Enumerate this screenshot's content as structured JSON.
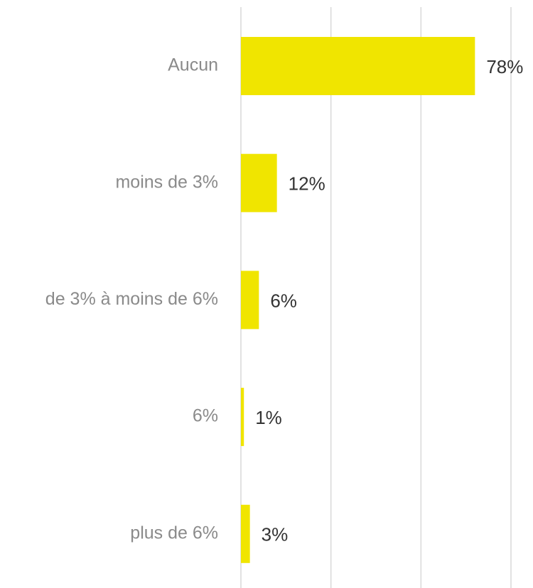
{
  "chart_data": {
    "type": "barh",
    "categories": [
      "Aucun",
      "moins de 3%",
      "de 3% à moins de 6%",
      "6%",
      "plus de 6%"
    ],
    "values": [
      78,
      12,
      6,
      1,
      3
    ],
    "value_labels": [
      "78%",
      "12%",
      "6%",
      "1%",
      "3%"
    ],
    "color": "#f0e500",
    "xlim": [
      0,
      90
    ],
    "xticks": [
      0,
      30,
      60,
      90
    ],
    "grid": true
  }
}
